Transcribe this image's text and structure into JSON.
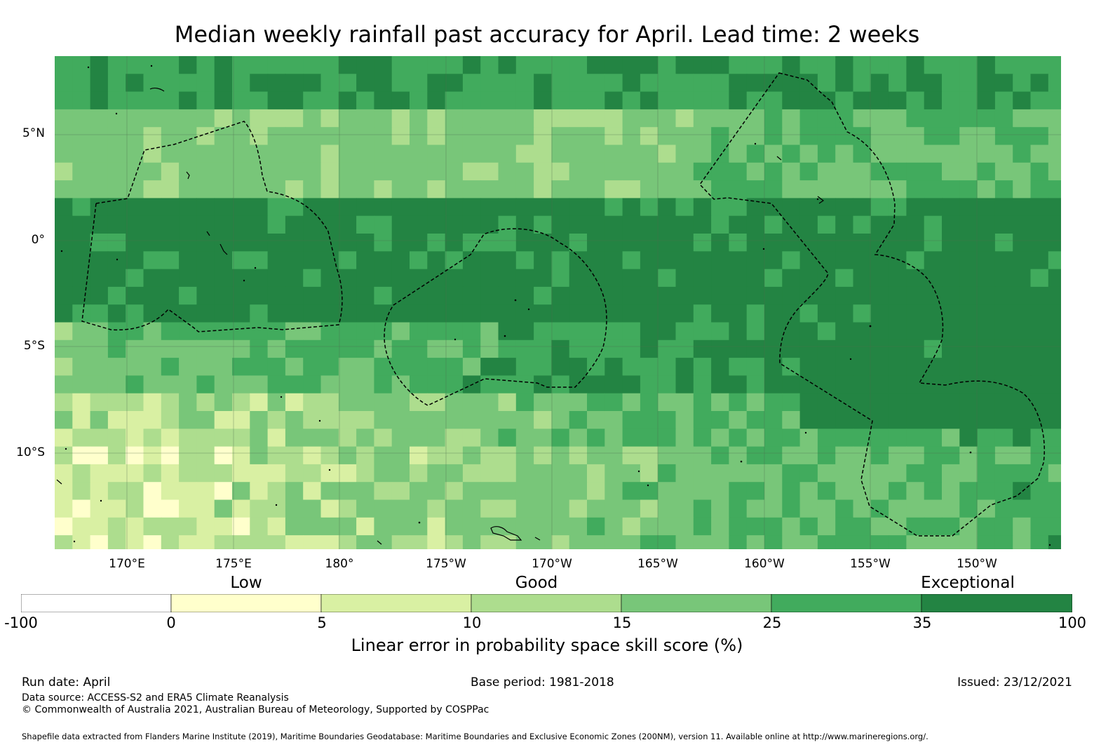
{
  "title": "Median weekly rainfall past accuracy for April. Lead time: 2 weeks",
  "map": {
    "lon_range": [
      166.6,
      214.0
    ],
    "lat_range": [
      -14.3,
      8.7
    ],
    "cell_deg": 0.83,
    "lat_ticks": [
      "5°N",
      "0°",
      "5°S",
      "10°S"
    ],
    "lon_ticks": [
      "170°E",
      "175°E",
      "180°",
      "175°W",
      "170°W",
      "165°W",
      "160°W",
      "155°W",
      "150°W"
    ]
  },
  "categories": {
    "low": "Low",
    "good": "Good",
    "exceptional": "Exceptional"
  },
  "colorbar": {
    "bins": [
      {
        "min": -100,
        "max": 0,
        "color": "#ffffff"
      },
      {
        "min": 0,
        "max": 5,
        "color": "#ffffcc"
      },
      {
        "min": 5,
        "max": 10,
        "color": "#d9f0a3"
      },
      {
        "min": 10,
        "max": 15,
        "color": "#addd8e"
      },
      {
        "min": 15,
        "max": 25,
        "color": "#78c679"
      },
      {
        "min": 25,
        "max": 35,
        "color": "#41ab5d"
      },
      {
        "min": 35,
        "max": 100,
        "color": "#238443"
      }
    ],
    "tick_labels": [
      "-100",
      "0",
      "5",
      "10",
      "15",
      "25",
      "35",
      "100"
    ],
    "label": "Linear error in probability space skill score (%)"
  },
  "footer": {
    "run_date": "Run date: April",
    "base_period": "Base period: 1981-2018",
    "issued": "Issued: 23/12/2021",
    "data_source": "Data source: ACCESS-S2 and ERA5 Climate Reanalysis",
    "copyright": "© Commonwealth of Australia 2021, Australian Bureau of Meteorology, Supported by COSPPac",
    "shapefile": "Shapefile data extracted from Flanders Marine Institute (2019), Maritime Boundaries Geodatabase: Maritime Boundaries and Exclusive Economic Zones (200NM), version 11. Available online at http://www.marineregions.org/."
  }
}
